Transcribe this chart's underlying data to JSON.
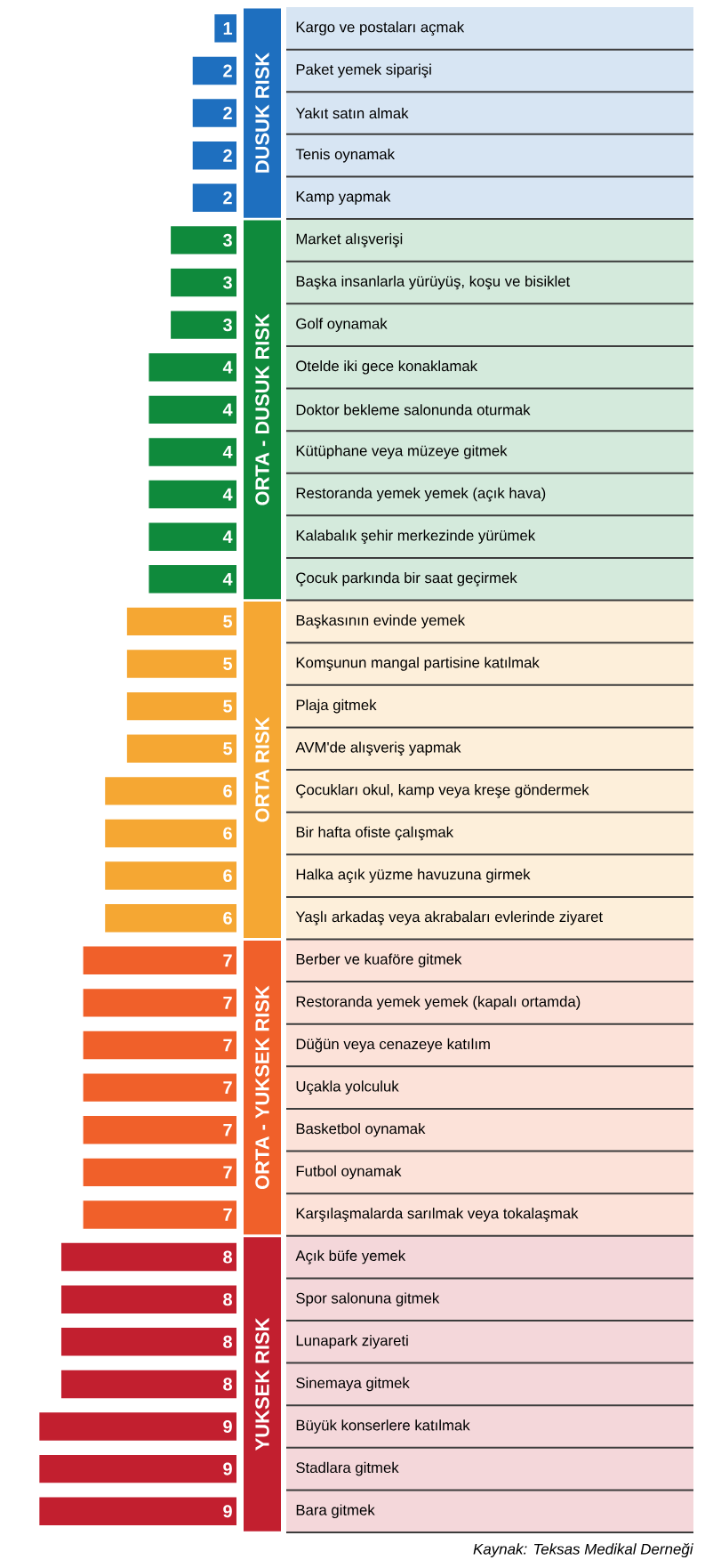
{
  "chart_data": {
    "type": "bar",
    "orientation": "horizontal",
    "data_labels": true,
    "categories": [
      "Kargo ve postaları açmak",
      "Paket yemek siparişi",
      "Yakıt satın almak",
      "Tenis oynamak",
      "Kamp yapmak",
      "Market alışverişi",
      "Başka insanlarla yürüyüş, koşu ve bisiklet",
      "Golf oynamak",
      "Otelde iki gece konaklamak",
      "Doktor bekleme salonunda oturmak",
      "Kütüphane veya müzeye gitmek",
      "Restoranda yemek yemek (açık hava)",
      "Kalabalık şehir merkezinde yürümek",
      "Çocuk parkında bir saat geçirmek",
      "Başkasının evinde yemek",
      "Komşunun mangal partisine katılmak",
      "Plaja gitmek",
      "AVM'de alışveriş yapmak",
      "Çocukları okul, kamp veya kreşe göndermek",
      "Bir hafta ofiste çalışmak",
      "Halka açık yüzme havuzuna girmek",
      "Yaşlı arkadaş veya akrabaları evlerinde ziyaret",
      "Berber ve kuaföre gitmek",
      "Restoranda yemek yemek (kapalı ortamda)",
      "Düğün veya cenazeye katılım",
      "Uçakla yolculuk",
      "Basketbol oynamak",
      "Futbol oynamak",
      "Karşılaşmalarda sarılmak veya tokalaşmak",
      "Açık büfe yemek",
      "Spor salonuna gitmek",
      "Lunapark ziyareti",
      "Sinemaya gitmek",
      "Büyük konserlere katılmak",
      "Stadlara gitmek",
      "Bara gitmek"
    ],
    "values": [
      1,
      2,
      2,
      2,
      2,
      3,
      3,
      3,
      4,
      4,
      4,
      4,
      4,
      4,
      5,
      5,
      5,
      5,
      6,
      6,
      6,
      6,
      7,
      7,
      7,
      7,
      7,
      7,
      7,
      8,
      8,
      8,
      8,
      9,
      9,
      9
    ],
    "colors": [
      "#1e6fbf",
      "#1e6fbf",
      "#1e6fbf",
      "#1e6fbf",
      "#1e6fbf",
      "#0f8a3c",
      "#0f8a3c",
      "#0f8a3c",
      "#0f8a3c",
      "#0f8a3c",
      "#0f8a3c",
      "#0f8a3c",
      "#0f8a3c",
      "#0f8a3c",
      "#f5a733",
      "#f5a733",
      "#f5a733",
      "#f5a733",
      "#f5a733",
      "#f5a733",
      "#f5a733",
      "#f5a733",
      "#f0602a",
      "#f0602a",
      "#f0602a",
      "#f0602a",
      "#f0602a",
      "#f0602a",
      "#f0602a",
      "#c21f2f",
      "#c21f2f",
      "#c21f2f",
      "#c21f2f",
      "#c21f2f",
      "#c21f2f",
      "#c21f2f"
    ],
    "annotations": [
      "DUSUK RISK",
      "ORTA - DUSUK RISK",
      "ORTA RISK",
      "ORTA - YUKSEK RISK",
      "YUKSEK RISK",
      "Kaynak: Teksas Medikal Derneği"
    ]
  }
}
